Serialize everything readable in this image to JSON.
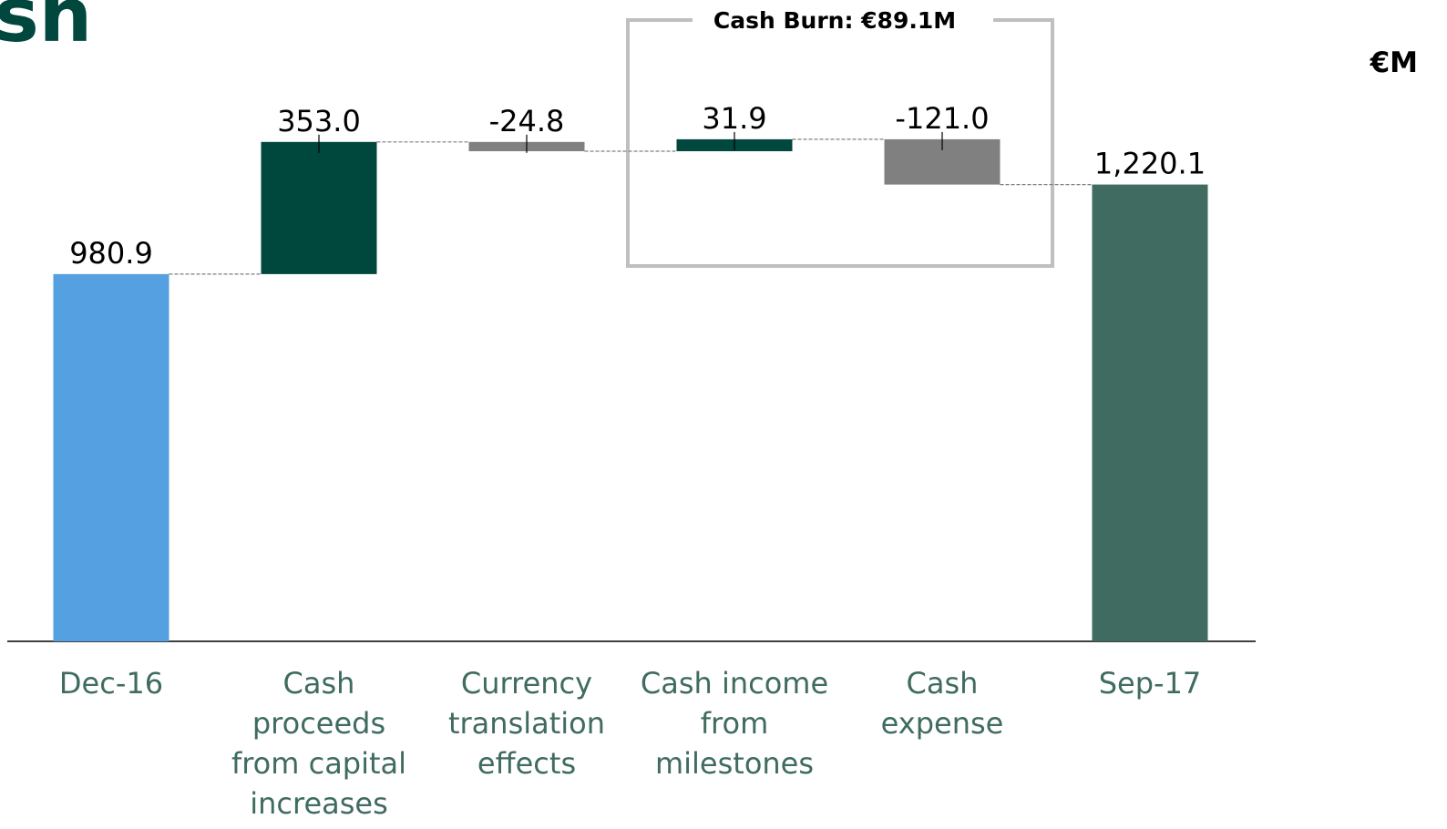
{
  "chart_data": {
    "type": "waterfall",
    "title": "sh",
    "unit_label": "€M",
    "annotation": "Cash Burn: €89.1M",
    "categories": [
      "Dec-16",
      "Cash proceeds from capital increases",
      "Currency translation effects",
      "Cash income from milestones",
      "Cash expense",
      "Sep-17"
    ],
    "values": [
      980.9,
      353.0,
      -24.8,
      31.9,
      -121.0,
      1220.1
    ],
    "value_labels": [
      "980.9",
      "353.0",
      "-24.8",
      "31.9",
      "-121.0",
      "1,220.1"
    ],
    "totals": [
      true,
      false,
      false,
      false,
      false,
      true
    ],
    "colors": [
      "#55a0e0",
      "#00473e",
      "#808080",
      "#00473e",
      "#808080",
      "#3f6b60"
    ],
    "ylim": [
      0,
      1713
    ]
  }
}
